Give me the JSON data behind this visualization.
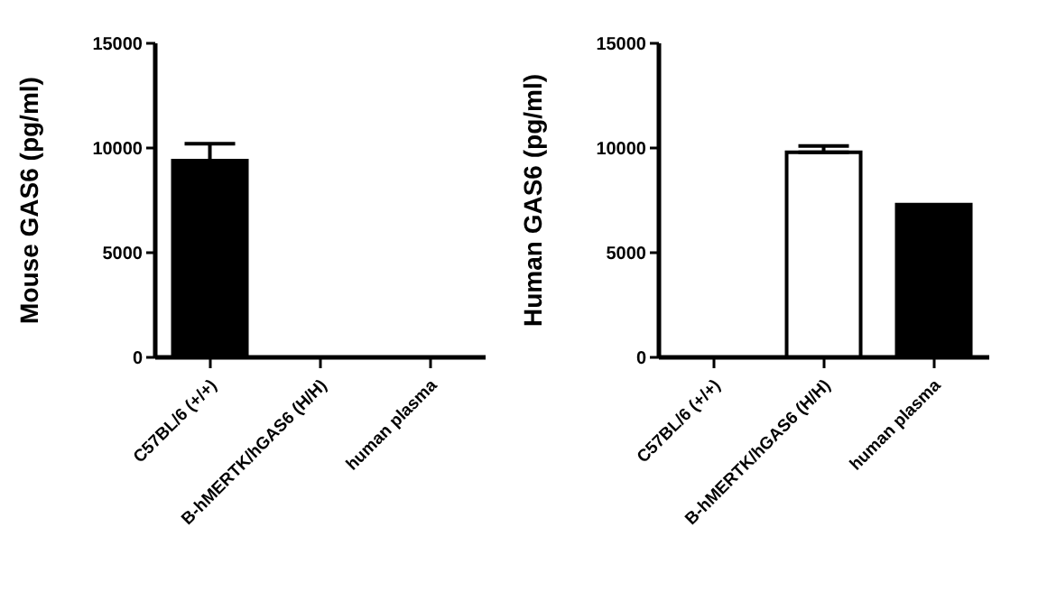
{
  "chart_data": [
    {
      "type": "bar",
      "ylabel": "Mouse GAS6 (pg/ml)",
      "categories": [
        "C57BL/6 (+/+)",
        "B-hMERTK/hGAS6 (H/H)",
        "human plasma"
      ],
      "values": [
        9400,
        0,
        0
      ],
      "errors": [
        800,
        null,
        null
      ],
      "colors": [
        "#000000",
        "#000000",
        "#000000"
      ],
      "ylim": [
        0,
        15000
      ],
      "yticks": [
        0,
        5000,
        10000,
        15000
      ],
      "grid": false,
      "legend": false
    },
    {
      "type": "bar",
      "ylabel": "Human GAS6 (pg/ml)",
      "categories": [
        "C57BL/6 (+/+)",
        "B-hMERTK/hGAS6 (H/H)",
        "human plasma"
      ],
      "values": [
        0,
        9800,
        7300
      ],
      "errors": [
        null,
        300,
        null
      ],
      "colors": [
        "#ffffff",
        "#ffffff",
        "#000000"
      ],
      "ylim": [
        0,
        15000
      ],
      "yticks": [
        0,
        5000,
        10000,
        15000
      ],
      "grid": false,
      "legend": false
    }
  ]
}
